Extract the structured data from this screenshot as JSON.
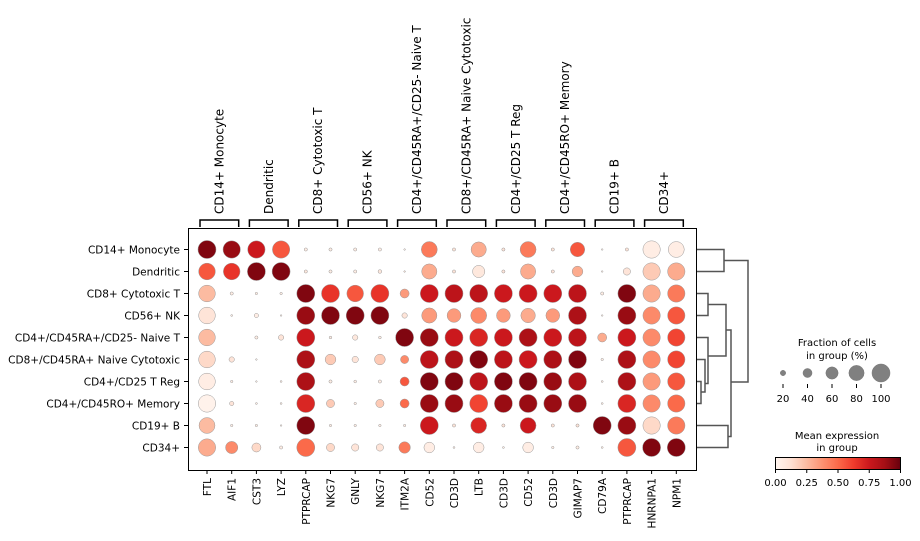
{
  "chart_data": {
    "type": "dotplot",
    "groups": [
      {
        "name": "CD14+ Monocyte",
        "genes": [
          "FTL",
          "AIF1"
        ]
      },
      {
        "name": "Dendritic",
        "genes": [
          "CST3",
          "LYZ"
        ]
      },
      {
        "name": "CD8+ Cytotoxic T",
        "genes": [
          "PTPRCAP",
          "NKG7"
        ]
      },
      {
        "name": "CD56+ NK",
        "genes": [
          "GNLY",
          "NKG7"
        ]
      },
      {
        "name": "CD4+/CD45RA+/CD25- Naive T",
        "genes": [
          "ITM2A",
          "CD52"
        ]
      },
      {
        "name": "CD8+/CD45RA+ Naive Cytotoxic",
        "genes": [
          "CD3D",
          "LTB"
        ]
      },
      {
        "name": "CD4+/CD25 T Reg",
        "genes": [
          "CD3D",
          "CD52"
        ]
      },
      {
        "name": "CD4+/CD45RO+ Memory",
        "genes": [
          "CD3D",
          "GIMAP7"
        ]
      },
      {
        "name": "CD19+ B",
        "genes": [
          "CD79A",
          "PTPRCAP"
        ]
      },
      {
        "name": "CD34+",
        "genes": [
          "HNRNPA1",
          "NPM1"
        ]
      }
    ],
    "rows": [
      "CD14+ Monocyte",
      "Dendritic",
      "CD8+ Cytotoxic T",
      "CD56+ NK",
      "CD4+/CD45RA+/CD25- Naive T",
      "CD8+/CD45RA+ Naive Cytotoxic",
      "CD4+/CD25 T Reg",
      "CD4+/CD45RO+ Memory",
      "CD19+ B",
      "CD34+"
    ],
    "fraction": [
      [
        1,
        0.95,
        0.95,
        0.95,
        0.1,
        0.1,
        0.1,
        0.1,
        0.02,
        0.85,
        0.1,
        0.8,
        0.1,
        0.85,
        0.1,
        0.75,
        0.02,
        0.1,
        0.95,
        0.85
      ],
      [
        0.9,
        0.9,
        1,
        1,
        0.1,
        0.1,
        0.1,
        0.12,
        0.03,
        0.8,
        0.1,
        0.6,
        0.1,
        0.8,
        0.1,
        0.5,
        0.02,
        0.3,
        0.95,
        0.95
      ],
      [
        0.9,
        0.1,
        0.07,
        0.07,
        1,
        1,
        0.9,
        1,
        0.4,
        1,
        1,
        1,
        1,
        1,
        1,
        1,
        0.1,
        1,
        0.95,
        0.95
      ],
      [
        0.9,
        0.05,
        0.15,
        0.03,
        1,
        1,
        1,
        1,
        0.2,
        0.8,
        0.7,
        0.85,
        0.7,
        0.75,
        0.7,
        1,
        0.02,
        1,
        0.95,
        0.95
      ],
      [
        0.9,
        0,
        0.1,
        0.2,
        1,
        0.08,
        0.2,
        0.08,
        1,
        1,
        1,
        1,
        1,
        1,
        1,
        1,
        0.4,
        1,
        0.95,
        0.95
      ],
      [
        0.9,
        0.2,
        0.03,
        0,
        1,
        0.5,
        0.25,
        0.5,
        0.35,
        1,
        1,
        1,
        1,
        1,
        1,
        1,
        0.07,
        1,
        0.95,
        0.95
      ],
      [
        0.9,
        0.07,
        0.03,
        0.05,
        1,
        0.1,
        0.08,
        0.1,
        0.4,
        1,
        1,
        1,
        1,
        1,
        1,
        1,
        0.05,
        1,
        0.95,
        0.95
      ],
      [
        0.95,
        0.15,
        0.05,
        0.05,
        1,
        0.35,
        0.07,
        0.35,
        0.4,
        1,
        1,
        1,
        1,
        1,
        1,
        1,
        0.05,
        1,
        0.95,
        0.95
      ],
      [
        0.85,
        0.07,
        0.07,
        0.03,
        1,
        0.07,
        0.07,
        0.07,
        0.07,
        1,
        0.1,
        0.85,
        0.1,
        0.85,
        0.1,
        0.1,
        1,
        1,
        0.95,
        0.95
      ],
      [
        0.95,
        0.6,
        0.4,
        0.1,
        1,
        0.35,
        0.3,
        0.3,
        0.55,
        0.5,
        0.05,
        0.5,
        0.05,
        0.5,
        0.07,
        0.1,
        0.05,
        1,
        1,
        1
      ]
    ],
    "mean_expression": [
      [
        0.95,
        0.9,
        0.75,
        0.55,
        0.05,
        0.05,
        0.05,
        0.05,
        0.05,
        0.45,
        0.1,
        0.3,
        0.1,
        0.45,
        0.1,
        0.55,
        0.05,
        0.1,
        0.05,
        0.05
      ],
      [
        0.55,
        0.65,
        0.95,
        0.95,
        0.08,
        0.05,
        0.05,
        0.08,
        0.1,
        0.3,
        0.1,
        0.08,
        0.1,
        0.3,
        0.1,
        0.3,
        0.05,
        0.1,
        0.2,
        0.3
      ],
      [
        0.25,
        0.05,
        0.05,
        0.05,
        0.95,
        0.65,
        0.55,
        0.65,
        0.35,
        0.75,
        0.8,
        0.8,
        0.75,
        0.75,
        0.75,
        0.8,
        0.05,
        0.95,
        0.3,
        0.45
      ],
      [
        0.1,
        0.05,
        0.05,
        0.05,
        0.9,
        0.95,
        0.95,
        0.95,
        0.1,
        0.35,
        0.35,
        0.4,
        0.35,
        0.3,
        0.35,
        0.85,
        0.05,
        0.9,
        0.4,
        0.55
      ],
      [
        0.25,
        0,
        0.05,
        0.1,
        0.75,
        0.05,
        0.08,
        0.05,
        0.95,
        0.9,
        0.75,
        0.7,
        0.75,
        0.85,
        0.75,
        0.8,
        0.3,
        0.75,
        0.4,
        0.6
      ],
      [
        0.15,
        0.1,
        0.05,
        0,
        0.85,
        0.2,
        0.1,
        0.2,
        0.4,
        0.8,
        0.85,
        0.95,
        0.8,
        0.75,
        0.85,
        0.95,
        0.05,
        0.85,
        0.4,
        0.6
      ],
      [
        0.05,
        0.05,
        0.05,
        0.05,
        0.85,
        0.05,
        0.05,
        0.05,
        0.55,
        0.95,
        0.95,
        0.8,
        0.95,
        0.95,
        0.9,
        0.85,
        0.05,
        0.85,
        0.35,
        0.55
      ],
      [
        0.02,
        0.1,
        0.05,
        0.05,
        0.7,
        0.2,
        0.05,
        0.2,
        0.5,
        0.9,
        0.9,
        0.6,
        0.9,
        0.9,
        0.9,
        0.9,
        0.05,
        0.7,
        0.4,
        0.5
      ],
      [
        0.25,
        0.05,
        0.05,
        0.05,
        0.95,
        0.05,
        0.05,
        0.05,
        0.05,
        0.75,
        0.1,
        0.7,
        0.1,
        0.75,
        0.1,
        0.1,
        0.95,
        0.9,
        0.15,
        0.45
      ],
      [
        0.3,
        0.4,
        0.15,
        0.05,
        0.5,
        0.15,
        0.1,
        0.1,
        0.45,
        0.05,
        0.05,
        0.05,
        0.05,
        0.05,
        0.05,
        0.05,
        0.05,
        0.55,
        0.95,
        0.95
      ]
    ],
    "size_legend": {
      "title": "Fraction of cells\nin group (%)",
      "title_lines": [
        "Fraction of cells",
        "in group (%)"
      ],
      "ticks": [
        "20",
        "40",
        "60",
        "80",
        "100"
      ]
    },
    "color_legend": {
      "title_lines": [
        "Mean expression",
        "in group"
      ],
      "ticks": [
        "0.00",
        "0.25",
        "0.50",
        "0.75",
        "1.00"
      ],
      "colormap": "Reds",
      "range": [
        0,
        1
      ]
    },
    "colormap_stops": [
      "#fff5f0",
      "#fee0d2",
      "#fcbba1",
      "#fc9272",
      "#fb6a4a",
      "#ef3b2c",
      "#cb181d",
      "#a50f15",
      "#67000d"
    ],
    "dendrogram": "((Monocyte,Dendritic),(((CD8+ Cytotoxic T,CD56+ NK),(Naive T,(Naive Cytotoxic,(T Reg,Memory)))),(CD19+ B,CD34+)))",
    "dendrogram_color": "#555555",
    "dot_edge_color": "#999999"
  }
}
